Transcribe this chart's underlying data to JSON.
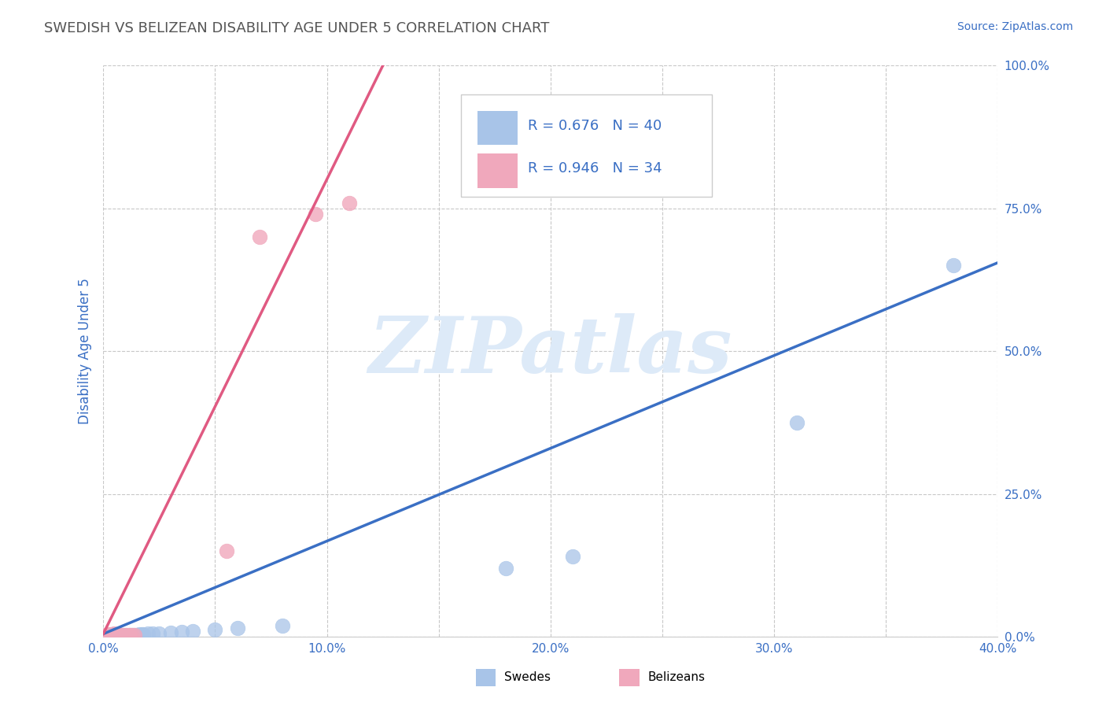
{
  "title": "SWEDISH VS BELIZEAN DISABILITY AGE UNDER 5 CORRELATION CHART",
  "source_text": "Source: ZipAtlas.com",
  "ylabel": "Disability Age Under 5",
  "xlim": [
    0.0,
    0.4
  ],
  "ylim": [
    0.0,
    1.0
  ],
  "xticks": [
    0.0,
    0.05,
    0.1,
    0.15,
    0.2,
    0.25,
    0.3,
    0.35,
    0.4
  ],
  "yticks": [
    0.0,
    0.25,
    0.5,
    0.75,
    1.0
  ],
  "xtick_labels": [
    "0.0%",
    "",
    "10.0%",
    "",
    "20.0%",
    "",
    "30.0%",
    "",
    "40.0%"
  ],
  "ytick_labels": [
    "0.0%",
    "25.0%",
    "50.0%",
    "75.0%",
    "100.0%"
  ],
  "swedish_R": 0.676,
  "swedish_N": 40,
  "belizean_R": 0.946,
  "belizean_N": 34,
  "swedish_color": "#a8c4e8",
  "belizean_color": "#f0a8bc",
  "swedish_line_color": "#3a6fc4",
  "belizean_line_color": "#e05a82",
  "background_color": "#ffffff",
  "grid_color": "#c8c8c8",
  "watermark_text": "ZIPatlas",
  "watermark_color": "#ddeaf8",
  "title_color": "#555555",
  "axis_label_color": "#3a6fc4",
  "legend_R_N_color": "#3a6fc4",
  "swedish_scatter_x": [
    0.001,
    0.002,
    0.003,
    0.003,
    0.004,
    0.004,
    0.005,
    0.005,
    0.005,
    0.006,
    0.006,
    0.007,
    0.007,
    0.008,
    0.008,
    0.009,
    0.009,
    0.01,
    0.01,
    0.011,
    0.012,
    0.013,
    0.014,
    0.015,
    0.016,
    0.017,
    0.018,
    0.02,
    0.022,
    0.025,
    0.03,
    0.035,
    0.04,
    0.05,
    0.06,
    0.08,
    0.18,
    0.21,
    0.31,
    0.38
  ],
  "swedish_scatter_y": [
    0.002,
    0.002,
    0.002,
    0.003,
    0.002,
    0.003,
    0.002,
    0.003,
    0.004,
    0.002,
    0.003,
    0.002,
    0.003,
    0.002,
    0.003,
    0.002,
    0.003,
    0.002,
    0.003,
    0.002,
    0.003,
    0.003,
    0.003,
    0.003,
    0.004,
    0.004,
    0.004,
    0.005,
    0.005,
    0.005,
    0.007,
    0.008,
    0.01,
    0.012,
    0.015,
    0.02,
    0.12,
    0.14,
    0.375,
    0.65
  ],
  "belizean_scatter_x": [
    0.001,
    0.001,
    0.002,
    0.002,
    0.002,
    0.003,
    0.003,
    0.003,
    0.004,
    0.004,
    0.004,
    0.005,
    0.005,
    0.005,
    0.005,
    0.006,
    0.006,
    0.006,
    0.007,
    0.007,
    0.007,
    0.008,
    0.008,
    0.009,
    0.009,
    0.01,
    0.011,
    0.012,
    0.013,
    0.014,
    0.055,
    0.07,
    0.095,
    0.11
  ],
  "belizean_scatter_y": [
    0.002,
    0.003,
    0.002,
    0.003,
    0.004,
    0.002,
    0.003,
    0.004,
    0.002,
    0.003,
    0.004,
    0.002,
    0.003,
    0.004,
    0.005,
    0.002,
    0.003,
    0.004,
    0.002,
    0.003,
    0.004,
    0.002,
    0.003,
    0.002,
    0.003,
    0.003,
    0.003,
    0.003,
    0.003,
    0.003,
    0.15,
    0.7,
    0.74,
    0.76
  ],
  "swedish_trend_x": [
    0.0,
    0.4
  ],
  "swedish_trend_y": [
    0.005,
    0.655
  ],
  "belizean_trend_x": [
    0.0,
    0.125
  ],
  "belizean_trend_y": [
    0.005,
    1.0
  ]
}
